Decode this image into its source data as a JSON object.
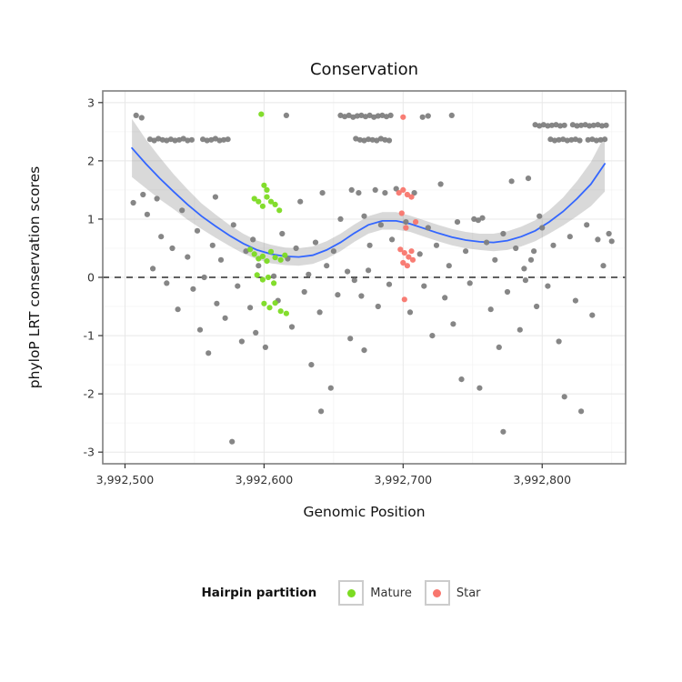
{
  "chart_data": {
    "type": "scatter",
    "title": "Conservation",
    "xlabel": "Genomic Position",
    "ylabel": "phyloP LRT conservation scores",
    "xlim": [
      3992484,
      3992860
    ],
    "ylim": [
      -3.2,
      3.2
    ],
    "grid": true,
    "x_ticks": [
      {
        "value": 3992500,
        "label": "3,992,500"
      },
      {
        "value": 3992600,
        "label": "3,992,600"
      },
      {
        "value": 3992700,
        "label": "3,992,700"
      },
      {
        "value": 3992800,
        "label": "3,992,800"
      }
    ],
    "y_ticks": [
      {
        "value": -3,
        "label": "-3"
      },
      {
        "value": -2,
        "label": "-2"
      },
      {
        "value": -1,
        "label": "-1"
      },
      {
        "value": 0,
        "label": "0"
      },
      {
        "value": 1,
        "label": "1"
      },
      {
        "value": 2,
        "label": "2"
      },
      {
        "value": 3,
        "label": "3"
      }
    ],
    "hline": {
      "y": 0,
      "style": "dashed",
      "color": "#000000"
    },
    "colors": {
      "gray_points": "#808080",
      "mature_points": "#7CDB22",
      "star_points": "#F8766D",
      "smooth_line": "#3366FF",
      "ribbon": "rgba(128,128,128,0.30)",
      "panel_border": "#7f7f7f",
      "grid_major": "#e8e8e8",
      "grid_minor": "#f4f4f4"
    },
    "legend": {
      "title": "Hairpin partition",
      "position": "bottom",
      "items": [
        {
          "label": "Mature",
          "color": "#7CDB22"
        },
        {
          "label": "Star",
          "color": "#F8766D"
        }
      ]
    },
    "series": [
      {
        "name": "unpartitioned",
        "color": "#808080",
        "points": [
          [
            3992508,
            2.78
          ],
          [
            3992512,
            2.74
          ],
          [
            3992518,
            2.37
          ],
          [
            3992521,
            2.35
          ],
          [
            3992524,
            2.38
          ],
          [
            3992527,
            2.36
          ],
          [
            3992530,
            2.35
          ],
          [
            3992533,
            2.37
          ],
          [
            3992536,
            2.35
          ],
          [
            3992539,
            2.36
          ],
          [
            3992542,
            2.38
          ],
          [
            3992545,
            2.35
          ],
          [
            3992548,
            2.36
          ],
          [
            3992556,
            2.37
          ],
          [
            3992559,
            2.35
          ],
          [
            3992562,
            2.36
          ],
          [
            3992565,
            2.38
          ],
          [
            3992568,
            2.35
          ],
          [
            3992571,
            2.36
          ],
          [
            3992574,
            2.37
          ],
          [
            3992506,
            1.28
          ],
          [
            3992513,
            1.42
          ],
          [
            3992516,
            1.08
          ],
          [
            3992523,
            1.35
          ],
          [
            3992520,
            0.15
          ],
          [
            3992526,
            0.7
          ],
          [
            3992530,
            -0.1
          ],
          [
            3992534,
            0.5
          ],
          [
            3992538,
            -0.55
          ],
          [
            3992541,
            1.15
          ],
          [
            3992545,
            0.35
          ],
          [
            3992549,
            -0.2
          ],
          [
            3992552,
            0.8
          ],
          [
            3992554,
            -0.9
          ],
          [
            3992557,
            0.0
          ],
          [
            3992560,
            -1.3
          ],
          [
            3992563,
            0.55
          ],
          [
            3992565,
            1.38
          ],
          [
            3992566,
            -0.45
          ],
          [
            3992569,
            0.3
          ],
          [
            3992572,
            -0.7
          ],
          [
            3992577,
            -2.82
          ],
          [
            3992578,
            0.9
          ],
          [
            3992581,
            -0.15
          ],
          [
            3992584,
            -1.1
          ],
          [
            3992587,
            0.45
          ],
          [
            3992590,
            -0.52
          ],
          [
            3992592,
            0.65
          ],
          [
            3992594,
            -0.95
          ],
          [
            3992596,
            0.2
          ],
          [
            3992616,
            2.78
          ],
          [
            3992601,
            -1.2
          ],
          [
            3992607,
            0.02
          ],
          [
            3992610,
            -0.4
          ],
          [
            3992613,
            0.75
          ],
          [
            3992617,
            0.32
          ],
          [
            3992620,
            -0.85
          ],
          [
            3992623,
            0.5
          ],
          [
            3992626,
            1.3
          ],
          [
            3992629,
            -0.25
          ],
          [
            3992632,
            0.05
          ],
          [
            3992634,
            -1.5
          ],
          [
            3992637,
            0.6
          ],
          [
            3992640,
            -0.6
          ],
          [
            3992641,
            -2.3
          ],
          [
            3992642,
            1.45
          ],
          [
            3992645,
            0.2
          ],
          [
            3992648,
            -1.9
          ],
          [
            3992650,
            0.45
          ],
          [
            3992653,
            -0.3
          ],
          [
            3992655,
            1.0
          ],
          [
            3992660,
            0.1
          ],
          [
            3992662,
            -1.05
          ],
          [
            3992655,
            2.78
          ],
          [
            3992658,
            2.76
          ],
          [
            3992661,
            2.78
          ],
          [
            3992664,
            2.75
          ],
          [
            3992667,
            2.77
          ],
          [
            3992670,
            2.78
          ],
          [
            3992673,
            2.76
          ],
          [
            3992676,
            2.78
          ],
          [
            3992679,
            2.75
          ],
          [
            3992682,
            2.77
          ],
          [
            3992685,
            2.78
          ],
          [
            3992688,
            2.76
          ],
          [
            3992691,
            2.78
          ],
          [
            3992666,
            2.38
          ],
          [
            3992669,
            2.36
          ],
          [
            3992672,
            2.35
          ],
          [
            3992675,
            2.37
          ],
          [
            3992678,
            2.36
          ],
          [
            3992681,
            2.35
          ],
          [
            3992684,
            2.38
          ],
          [
            3992687,
            2.36
          ],
          [
            3992690,
            2.35
          ],
          [
            3992663,
            1.5
          ],
          [
            3992668,
            1.45
          ],
          [
            3992672,
            1.05
          ],
          [
            3992676,
            0.55
          ],
          [
            3992680,
            1.5
          ],
          [
            3992684,
            0.9
          ],
          [
            3992687,
            1.45
          ],
          [
            3992692,
            0.65
          ],
          [
            3992665,
            -0.05
          ],
          [
            3992670,
            -0.32
          ],
          [
            3992675,
            0.12
          ],
          [
            3992695,
            1.52
          ],
          [
            3992672,
            -1.25
          ],
          [
            3992690,
            -0.12
          ],
          [
            3992682,
            -0.5
          ],
          [
            3992714,
            2.75
          ],
          [
            3992718,
            2.77
          ],
          [
            3992735,
            2.78
          ],
          [
            3992702,
            0.95
          ],
          [
            3992705,
            -0.6
          ],
          [
            3992708,
            1.45
          ],
          [
            3992712,
            0.4
          ],
          [
            3992715,
            -0.15
          ],
          [
            3992718,
            0.85
          ],
          [
            3992721,
            -1.0
          ],
          [
            3992724,
            0.55
          ],
          [
            3992727,
            1.6
          ],
          [
            3992730,
            -0.35
          ],
          [
            3992733,
            0.2
          ],
          [
            3992736,
            -0.8
          ],
          [
            3992739,
            0.95
          ],
          [
            3992742,
            -1.75
          ],
          [
            3992745,
            0.45
          ],
          [
            3992748,
            -0.1
          ],
          [
            3992751,
            1.0
          ],
          [
            3992754,
            0.98
          ],
          [
            3992757,
            1.02
          ],
          [
            3992760,
            0.6
          ],
          [
            3992763,
            -0.55
          ],
          [
            3992766,
            0.3
          ],
          [
            3992769,
            -1.2
          ],
          [
            3992772,
            -2.65
          ],
          [
            3992772,
            0.75
          ],
          [
            3992775,
            -0.25
          ],
          [
            3992778,
            1.65
          ],
          [
            3992781,
            0.5
          ],
          [
            3992784,
            -0.9
          ],
          [
            3992787,
            0.15
          ],
          [
            3992755,
            -1.9
          ],
          [
            3992788,
            -0.05
          ],
          [
            3992794,
            0.45
          ],
          [
            3992795,
            2.62
          ],
          [
            3992798,
            2.6
          ],
          [
            3992801,
            2.62
          ],
          [
            3992804,
            2.6
          ],
          [
            3992807,
            2.61
          ],
          [
            3992810,
            2.62
          ],
          [
            3992813,
            2.6
          ],
          [
            3992816,
            2.61
          ],
          [
            3992822,
            2.62
          ],
          [
            3992825,
            2.6
          ],
          [
            3992828,
            2.61
          ],
          [
            3992831,
            2.62
          ],
          [
            3992834,
            2.6
          ],
          [
            3992837,
            2.61
          ],
          [
            3992840,
            2.62
          ],
          [
            3992843,
            2.6
          ],
          [
            3992846,
            2.61
          ],
          [
            3992806,
            2.37
          ],
          [
            3992809,
            2.35
          ],
          [
            3992812,
            2.36
          ],
          [
            3992815,
            2.37
          ],
          [
            3992818,
            2.35
          ],
          [
            3992821,
            2.36
          ],
          [
            3992824,
            2.37
          ],
          [
            3992827,
            2.35
          ],
          [
            3992833,
            2.36
          ],
          [
            3992836,
            2.37
          ],
          [
            3992839,
            2.35
          ],
          [
            3992842,
            2.36
          ],
          [
            3992845,
            2.37
          ],
          [
            3992792,
            0.3
          ],
          [
            3992796,
            -0.5
          ],
          [
            3992800,
            0.85
          ],
          [
            3992804,
            -0.15
          ],
          [
            3992808,
            0.55
          ],
          [
            3992812,
            -1.1
          ],
          [
            3992816,
            -2.05
          ],
          [
            3992820,
            0.7
          ],
          [
            3992824,
            -0.4
          ],
          [
            3992828,
            -2.3
          ],
          [
            3992832,
            0.9
          ],
          [
            3992836,
            -0.65
          ],
          [
            3992840,
            0.65
          ],
          [
            3992844,
            0.2
          ],
          [
            3992848,
            0.75
          ],
          [
            3992850,
            0.62
          ],
          [
            3992790,
            1.7
          ],
          [
            3992798,
            1.05
          ]
        ]
      },
      {
        "name": "Mature",
        "color": "#7CDB22",
        "points": [
          [
            3992598,
            2.8
          ],
          [
            3992600,
            1.58
          ],
          [
            3992602,
            1.5
          ],
          [
            3992593,
            1.35
          ],
          [
            3992596,
            1.3
          ],
          [
            3992599,
            1.22
          ],
          [
            3992602,
            1.38
          ],
          [
            3992605,
            1.3
          ],
          [
            3992608,
            1.25
          ],
          [
            3992611,
            1.15
          ],
          [
            3992590,
            0.48
          ],
          [
            3992593,
            0.4
          ],
          [
            3992596,
            0.32
          ],
          [
            3992599,
            0.36
          ],
          [
            3992602,
            0.28
          ],
          [
            3992605,
            0.44
          ],
          [
            3992608,
            0.34
          ],
          [
            3992612,
            0.3
          ],
          [
            3992615,
            0.38
          ],
          [
            3992595,
            0.04
          ],
          [
            3992599,
            -0.04
          ],
          [
            3992603,
            0.0
          ],
          [
            3992607,
            -0.1
          ],
          [
            3992600,
            -0.45
          ],
          [
            3992604,
            -0.52
          ],
          [
            3992608,
            -0.44
          ],
          [
            3992612,
            -0.58
          ],
          [
            3992616,
            -0.62
          ]
        ]
      },
      {
        "name": "Star",
        "color": "#F8766D",
        "points": [
          [
            3992700,
            2.75
          ],
          [
            3992697,
            1.45
          ],
          [
            3992700,
            1.5
          ],
          [
            3992703,
            1.42
          ],
          [
            3992706,
            1.38
          ],
          [
            3992699,
            1.1
          ],
          [
            3992702,
            0.85
          ],
          [
            3992709,
            0.95
          ],
          [
            3992698,
            0.48
          ],
          [
            3992701,
            0.42
          ],
          [
            3992704,
            0.35
          ],
          [
            3992707,
            0.3
          ],
          [
            3992700,
            0.25
          ],
          [
            3992703,
            0.2
          ],
          [
            3992706,
            0.45
          ],
          [
            3992701,
            -0.38
          ]
        ]
      }
    ],
    "smooth": {
      "method": "loess",
      "line_color": "#3366FF",
      "points": [
        [
          3992505,
          2.22,
          0.5
        ],
        [
          3992515,
          1.95,
          0.42
        ],
        [
          3992525,
          1.7,
          0.36
        ],
        [
          3992535,
          1.47,
          0.3
        ],
        [
          3992545,
          1.25,
          0.26
        ],
        [
          3992555,
          1.05,
          0.22
        ],
        [
          3992565,
          0.88,
          0.2
        ],
        [
          3992575,
          0.72,
          0.18
        ],
        [
          3992585,
          0.58,
          0.17
        ],
        [
          3992595,
          0.47,
          0.16
        ],
        [
          3992605,
          0.4,
          0.16
        ],
        [
          3992615,
          0.36,
          0.15
        ],
        [
          3992625,
          0.35,
          0.15
        ],
        [
          3992635,
          0.38,
          0.15
        ],
        [
          3992645,
          0.47,
          0.15
        ],
        [
          3992655,
          0.6,
          0.15
        ],
        [
          3992665,
          0.76,
          0.15
        ],
        [
          3992675,
          0.9,
          0.15
        ],
        [
          3992685,
          0.97,
          0.15
        ],
        [
          3992695,
          0.97,
          0.15
        ],
        [
          3992705,
          0.92,
          0.14
        ],
        [
          3992715,
          0.84,
          0.14
        ],
        [
          3992725,
          0.76,
          0.14
        ],
        [
          3992735,
          0.69,
          0.14
        ],
        [
          3992745,
          0.64,
          0.14
        ],
        [
          3992755,
          0.61,
          0.14
        ],
        [
          3992765,
          0.6,
          0.15
        ],
        [
          3992775,
          0.63,
          0.16
        ],
        [
          3992785,
          0.7,
          0.17
        ],
        [
          3992795,
          0.8,
          0.18
        ],
        [
          3992805,
          0.95,
          0.2
        ],
        [
          3992815,
          1.13,
          0.24
        ],
        [
          3992825,
          1.35,
          0.3
        ],
        [
          3992835,
          1.6,
          0.38
        ],
        [
          3992845,
          1.95,
          0.48
        ]
      ]
    }
  }
}
